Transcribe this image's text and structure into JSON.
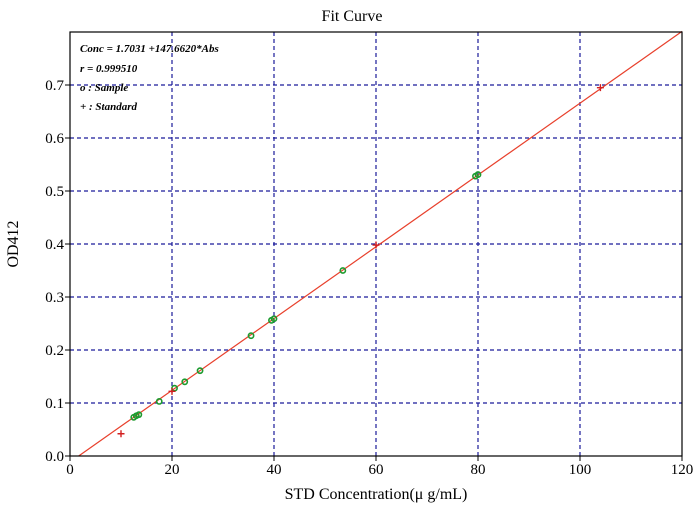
{
  "chart_data": {
    "type": "scatter",
    "title": "Fit Curve",
    "xlabel": "STD Concentration(μ g/mL)",
    "ylabel": "OD412",
    "xlim": [
      0,
      120
    ],
    "ylim": [
      0,
      0.8
    ],
    "x_ticks": [
      "0",
      "20",
      "40",
      "60",
      "80",
      "100",
      "120"
    ],
    "y_ticks": [
      "0.0",
      "0.1",
      "0.2",
      "0.3",
      "0.4",
      "0.5",
      "0.6",
      "0.7"
    ],
    "grid": true,
    "legend_position": "top-left",
    "legend": [
      "Conc = 1.7031 +147.6620*Abs",
      "r = 0.999510",
      "o : Sample",
      "+ : Standard"
    ],
    "fit_line": {
      "intercept": 1.7031,
      "slope": 147.662,
      "x_range": [
        1.7031,
        120
      ]
    },
    "series": [
      {
        "name": "Sample",
        "marker": "o",
        "x": [
          12.5,
          13.0,
          13.5,
          17.5,
          20.5,
          22.5,
          25.5,
          35.5,
          39.5,
          40.0,
          53.5,
          79.5,
          80.0
        ],
        "y": [
          0.073,
          0.076,
          0.078,
          0.103,
          0.128,
          0.14,
          0.161,
          0.227,
          0.256,
          0.259,
          0.35,
          0.528,
          0.531
        ]
      },
      {
        "name": "Standard",
        "marker": "+",
        "x": [
          10.0,
          20.0,
          60.0,
          104.0
        ],
        "y": [
          0.042,
          0.122,
          0.398,
          0.695
        ]
      }
    ]
  }
}
